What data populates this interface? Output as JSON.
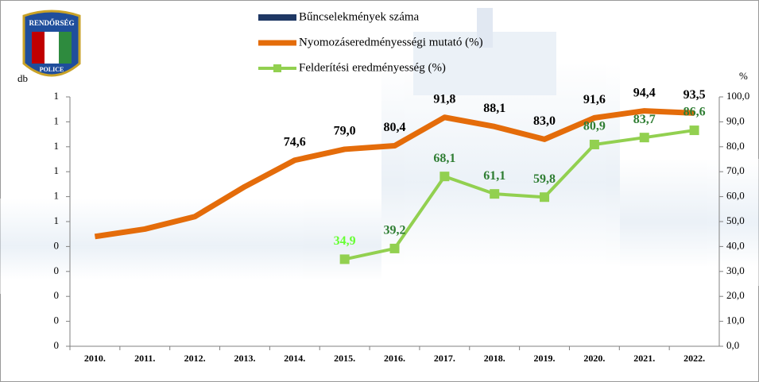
{
  "logo": {
    "top": "RENDŐRSÉG",
    "bottom": "POLICE"
  },
  "chart_data": {
    "type": "line",
    "ylabel": "db",
    "y2label": "%",
    "categories": [
      "2010.",
      "2011.",
      "2012.",
      "2013.",
      "2014.",
      "2015.",
      "2016.",
      "2017.",
      "2018.",
      "2019.",
      "2020.",
      "2021.",
      "2022."
    ],
    "ylim": [
      0,
      1
    ],
    "yticks": [
      0,
      {
        "value": 0.1,
        "label": "0"
      },
      {
        "value": 0.2,
        "label": "0"
      },
      {
        "value": 0.3,
        "label": "0"
      },
      {
        "value": 0.4,
        "label": "0"
      },
      {
        "value": 0.5,
        "label": "1"
      },
      {
        "value": 0.6,
        "label": "1"
      },
      {
        "value": 0.7,
        "label": "1"
      },
      {
        "value": 0.8,
        "label": "1"
      },
      {
        "value": 0.9,
        "label": "1"
      },
      1
    ],
    "y2lim": [
      0,
      100
    ],
    "y2ticks": [
      {
        "value": 0,
        "label": "0,0"
      },
      {
        "value": 10,
        "label": "10,0"
      },
      {
        "value": 20,
        "label": "20,0"
      },
      {
        "value": 30,
        "label": "30,0"
      },
      {
        "value": 40,
        "label": "40,0"
      },
      {
        "value": 50,
        "label": "50,0"
      },
      {
        "value": 60,
        "label": "60,0"
      },
      {
        "value": 70,
        "label": "70,0"
      },
      {
        "value": 80,
        "label": "80,0"
      },
      {
        "value": 90,
        "label": "90,0"
      },
      {
        "value": 100,
        "label": "100,0"
      }
    ],
    "series": [
      {
        "name": "Bűncselekmények száma",
        "type": "bar",
        "color": "#1f3864",
        "values": [
          null,
          null,
          null,
          null,
          null,
          null,
          null,
          null,
          null,
          null,
          null,
          null,
          null
        ]
      },
      {
        "name": "Nyomozáseredményességi mutató (%)",
        "type": "line",
        "axis": "y2",
        "color": "#e46c0a",
        "values": [
          44,
          47,
          52,
          64,
          74.6,
          79.0,
          80.4,
          91.8,
          88.1,
          83.0,
          91.6,
          94.4,
          93.5
        ],
        "value_labels": [
          null,
          null,
          null,
          null,
          "74,6",
          "79,0",
          "80,4",
          "91,8",
          "88,1",
          "83,0",
          "91,6",
          "94,4",
          "93,5"
        ],
        "value_label_colors": [
          "#000000",
          "#000000",
          "#000000",
          "#000000",
          "#000000",
          "#000000",
          "#000000",
          "#000000",
          "#000000",
          "#000000",
          "#000000",
          "#000000",
          "#000000"
        ]
      },
      {
        "name": "Felderítési eredményesség (%)",
        "type": "line",
        "axis": "y2",
        "color": "#92d050",
        "marker": "square",
        "values": [
          null,
          null,
          null,
          null,
          null,
          34.9,
          39.2,
          68.1,
          61.1,
          59.8,
          80.9,
          83.7,
          86.6
        ],
        "value_labels": [
          null,
          null,
          null,
          null,
          null,
          "34,9",
          "39,2",
          "68,1",
          "61,1",
          "59,8",
          "80,9",
          "83,7",
          "86,6"
        ],
        "value_label_colors": [
          null,
          null,
          null,
          null,
          null,
          "#66ff33",
          "#2e7d32",
          "#2e7d32",
          "#2e7d32",
          "#2e7d32",
          "#2e7d32",
          "#2e7d32",
          "#2e7d32"
        ]
      }
    ]
  }
}
